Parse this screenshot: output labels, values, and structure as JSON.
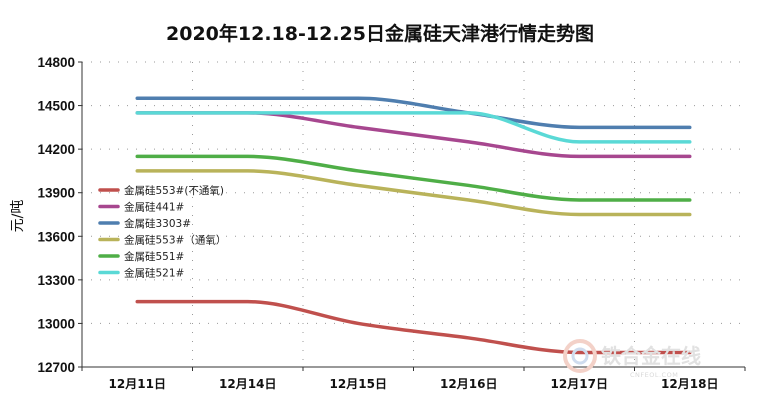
{
  "chart_data": {
    "type": "line",
    "title": "2020年12.18-12.25日金属硅天津港行情走势图",
    "ylabel": "元/吨",
    "xlabel": "",
    "categories": [
      "12月11日",
      "12月14日",
      "12月15日",
      "12月16日",
      "12月17日",
      "12月18日"
    ],
    "ylim": [
      12700,
      14800
    ],
    "yticks": [
      12700,
      13000,
      13300,
      13600,
      13900,
      14200,
      14500,
      14800
    ],
    "grid": "dotted",
    "legend_position": "left",
    "series": [
      {
        "name": "金属硅553#(不通氧)",
        "color": "#c0504d",
        "values": [
          13150,
          13150,
          13000,
          12900,
          12800,
          12800
        ]
      },
      {
        "name": "金属硅441#",
        "color": "#a7478f",
        "values": [
          14450,
          14450,
          14350,
          14250,
          14150,
          14150
        ]
      },
      {
        "name": "金属硅3303#",
        "color": "#4f7eaf",
        "values": [
          14550,
          14550,
          14550,
          14450,
          14350,
          14350
        ]
      },
      {
        "name": "金属硅553#（通氧）",
        "color": "#b9b35a",
        "values": [
          14050,
          14050,
          13950,
          13850,
          13750,
          13750
        ]
      },
      {
        "name": "金属硅551#",
        "color": "#4fae47",
        "values": [
          14150,
          14150,
          14050,
          13950,
          13850,
          13850
        ]
      },
      {
        "name": "金属硅521#",
        "color": "#5ad9d6",
        "values": [
          14450,
          14450,
          14450,
          14450,
          14250,
          14250
        ]
      }
    ]
  },
  "watermark": {
    "text": "铁合金在线",
    "sub": "CNFEOL.COM"
  }
}
